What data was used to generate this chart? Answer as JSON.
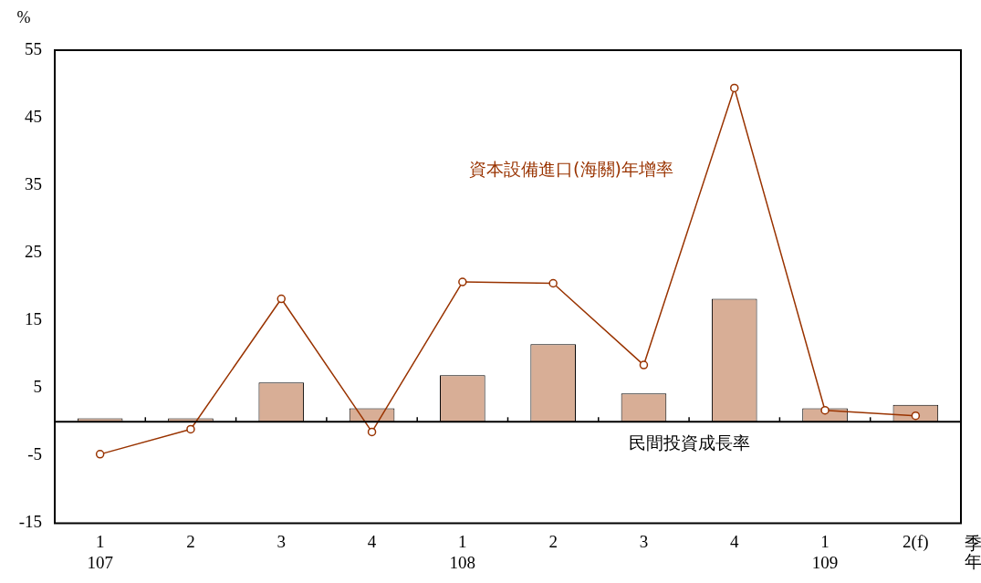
{
  "chart_data": {
    "type": "bar",
    "ylabel": "%",
    "xlabel": "季年",
    "categories": [
      "1\n107",
      "2",
      "3",
      "4",
      "1\n108",
      "2",
      "3",
      "4",
      "1\n109",
      "2(f)"
    ],
    "series": [
      {
        "name": "民間投資成長率",
        "color": "#d8ae96",
        "values": [
          0.5,
          0.5,
          5.8,
          2.0,
          6.9,
          11.5,
          4.2,
          18.2,
          2.0,
          2.5
        ]
      },
      {
        "name": "資本設備進口(海關)年增率",
        "type": "line",
        "color": "#993300",
        "marker": "circle",
        "line_style": "solid",
        "values": [
          -4.8,
          -1.1,
          18.2,
          -1.5,
          20.7,
          20.5,
          8.4,
          49.4,
          1.7,
          0.9
        ]
      }
    ],
    "ylim": [
      -15,
      55
    ],
    "yticks": [
      55,
      45,
      35,
      25,
      15,
      5,
      -5,
      -15
    ],
    "grid": false,
    "legend": false
  }
}
